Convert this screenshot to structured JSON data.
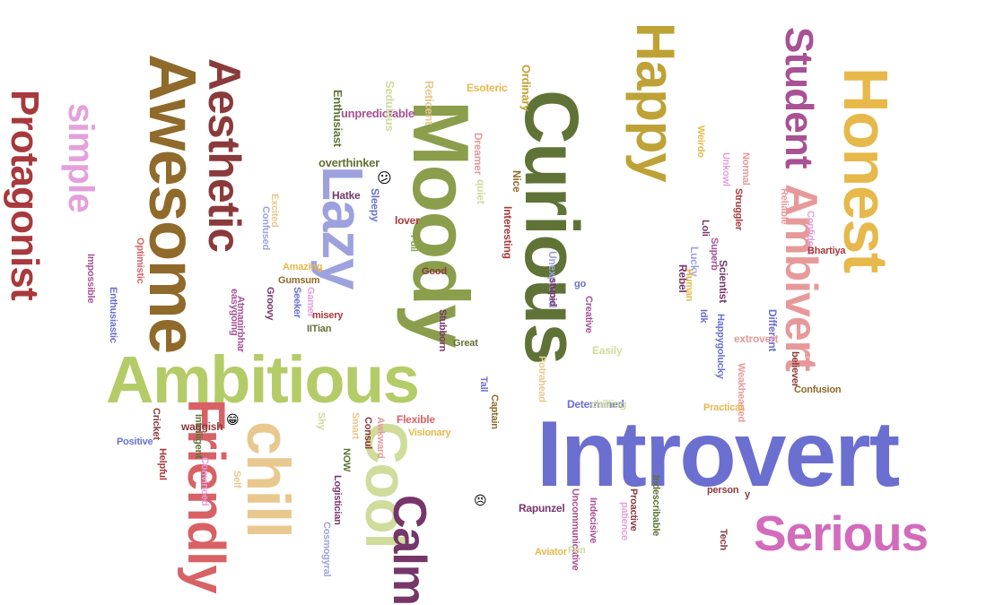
{
  "cloud": {
    "words": [
      {
        "text": "Introvert",
        "color": "#6b6fd0",
        "orientation": "horizontal"
      },
      {
        "text": "Ambitious",
        "color": "#b4cc67",
        "orientation": "horizontal"
      },
      {
        "text": "Moody",
        "color": "#8a9e4c",
        "orientation": "vertical"
      },
      {
        "text": "Curious",
        "color": "#5f7336",
        "orientation": "vertical"
      },
      {
        "text": "Awesome",
        "color": "#8f6a2b",
        "orientation": "vertical"
      },
      {
        "text": "Honest",
        "color": "#e7b84a",
        "orientation": "vertical"
      },
      {
        "text": "Happy",
        "color": "#bea236",
        "orientation": "vertical"
      },
      {
        "text": "Lazy",
        "color": "#9da2de",
        "orientation": "vertical"
      },
      {
        "text": "Cool",
        "color": "#cfdc9b",
        "orientation": "vertical"
      },
      {
        "text": "chill",
        "color": "#e8c88e",
        "orientation": "vertical"
      },
      {
        "text": "Friendly",
        "color": "#d86165",
        "orientation": "vertical"
      },
      {
        "text": "Serious",
        "color": "#d36bbd",
        "orientation": "horizontal"
      },
      {
        "text": "Calm",
        "color": "#763669",
        "orientation": "vertical"
      },
      {
        "text": "Ambivert",
        "color": "#e7999a",
        "orientation": "vertical"
      },
      {
        "text": "Student",
        "color": "#a85194",
        "orientation": "vertical"
      },
      {
        "text": "Aesthetic",
        "color": "#8b3a3b",
        "orientation": "vertical"
      },
      {
        "text": "Protagonist",
        "color": "#a8393c",
        "orientation": "vertical"
      },
      {
        "text": "simple",
        "color": "#e4a0dc",
        "orientation": "vertical"
      },
      {
        "text": "overthinker",
        "color": "#5f7336",
        "orientation": "horizontal"
      },
      {
        "text": "unpredictable",
        "color": "#a85194",
        "orientation": "horizontal"
      },
      {
        "text": "Enthusiast",
        "color": "#5f7336",
        "orientation": "vertical"
      },
      {
        "text": "Sedulous",
        "color": "#cfdc9b",
        "orientation": "vertical"
      },
      {
        "text": "Reticent",
        "color": "#e8c88e",
        "orientation": "vertical"
      },
      {
        "text": "Esoteric",
        "color": "#e7b84a",
        "orientation": "horizontal"
      },
      {
        "text": "Ordinary",
        "color": "#bea236",
        "orientation": "vertical"
      },
      {
        "text": "Dreamer",
        "color": "#e7999a",
        "orientation": "vertical"
      },
      {
        "text": "Nice",
        "color": "#8f6a2b",
        "orientation": "vertical"
      },
      {
        "text": "quiet",
        "color": "#cfdc9b",
        "orientation": "vertical"
      },
      {
        "text": "Hatke",
        "color": "#763669",
        "orientation": "horizontal"
      },
      {
        "text": "Sleepy",
        "color": "#6b6fd0",
        "orientation": "vertical"
      },
      {
        "text": "Excited",
        "color": "#e8c88e",
        "orientation": "vertical"
      },
      {
        "text": "lover",
        "color": "#a8393c",
        "orientation": "horizontal"
      },
      {
        "text": "Confused",
        "color": "#9da2de",
        "orientation": "vertical"
      },
      {
        "text": "Full",
        "color": "#8a9e4c",
        "orientation": "vertical"
      },
      {
        "text": "Interesting",
        "color": "#a8393c",
        "orientation": "vertical"
      },
      {
        "text": "Unexplored",
        "color": "#9da2de",
        "orientation": "vertical"
      },
      {
        "text": "Optimistic",
        "color": "#d86165",
        "orientation": "vertical"
      },
      {
        "text": "Impossible",
        "color": "#a85194",
        "orientation": "vertical"
      },
      {
        "text": "Amazing",
        "color": "#e7b84a",
        "orientation": "horizontal"
      },
      {
        "text": "Good",
        "color": "#8b3a3b",
        "orientation": "horizontal"
      },
      {
        "text": "easygoing",
        "color": "#a85194",
        "orientation": "vertical"
      },
      {
        "text": "Gumsum",
        "color": "#8f6a2b",
        "orientation": "horizontal"
      },
      {
        "text": "Gamer",
        "color": "#e4a0dc",
        "orientation": "vertical"
      },
      {
        "text": "Atmanirbhar",
        "color": "#a85194",
        "orientation": "vertical"
      },
      {
        "text": "Groovy",
        "color": "#763669",
        "orientation": "vertical"
      },
      {
        "text": "Seeker",
        "color": "#6b6fd0",
        "orientation": "vertical"
      },
      {
        "text": "misery",
        "color": "#a8393c",
        "orientation": "horizontal"
      },
      {
        "text": "stupid",
        "color": "#763669",
        "orientation": "vertical"
      },
      {
        "text": "go",
        "color": "#6b6fd0",
        "orientation": "horizontal"
      },
      {
        "text": "Enthusiastic",
        "color": "#6b6fd0",
        "orientation": "vertical"
      },
      {
        "text": "IITian",
        "color": "#5f7336",
        "orientation": "horizontal"
      },
      {
        "text": "Stubborn",
        "color": "#763669",
        "orientation": "vertical"
      },
      {
        "text": "Creative",
        "color": "#a85194",
        "orientation": "vertical"
      },
      {
        "text": "Easily",
        "color": "#cfdc9b",
        "orientation": "horizontal"
      },
      {
        "text": "Great",
        "color": "#5f7336",
        "orientation": "horizontal"
      },
      {
        "text": "Tall",
        "color": "#6b6fd0",
        "orientation": "vertical"
      },
      {
        "text": "Determined",
        "color": "#6b6fd0",
        "orientation": "horizontal"
      },
      {
        "text": "Potrahead",
        "color": "#e8c88e",
        "orientation": "vertical"
      },
      {
        "text": "chilling",
        "color": "#cfdc9b",
        "orientation": "horizontal"
      },
      {
        "text": "Captain",
        "color": "#8f6a2b",
        "orientation": "vertical"
      },
      {
        "text": "Rebel",
        "color": "#763669",
        "orientation": "vertical"
      },
      {
        "text": "Lucky",
        "color": "#9da2de",
        "orientation": "vertical"
      },
      {
        "text": "Loli",
        "color": "#763669",
        "orientation": "vertical"
      },
      {
        "text": "Superb",
        "color": "#a85194",
        "orientation": "vertical"
      },
      {
        "text": "Human",
        "color": "#e7b84a",
        "orientation": "vertical"
      },
      {
        "text": "Scientist",
        "color": "#763669",
        "orientation": "vertical"
      },
      {
        "text": "Idk",
        "color": "#6b6fd0",
        "orientation": "vertical"
      },
      {
        "text": "Happygolucky",
        "color": "#6b6fd0",
        "orientation": "vertical"
      },
      {
        "text": "Different",
        "color": "#6b6fd0",
        "orientation": "vertical"
      },
      {
        "text": "Weirdo",
        "color": "#e7b84a",
        "orientation": "vertical"
      },
      {
        "text": "Unkowl",
        "color": "#e4a0dc",
        "orientation": "vertical"
      },
      {
        "text": "Normal",
        "color": "#e7999a",
        "orientation": "vertical"
      },
      {
        "text": "Struggler",
        "color": "#a8393c",
        "orientation": "vertical"
      },
      {
        "text": "Reliable",
        "color": "#e7999a",
        "orientation": "vertical"
      },
      {
        "text": "Confident",
        "color": "#e4a0dc",
        "orientation": "vertical"
      },
      {
        "text": "Bhartiya",
        "color": "#a8393c",
        "orientation": "horizontal"
      },
      {
        "text": "extrovert",
        "color": "#e7999a",
        "orientation": "horizontal"
      },
      {
        "text": "believer",
        "color": "#8b3a3b",
        "orientation": "vertical"
      },
      {
        "text": "Weakhearted",
        "color": "#e7999a",
        "orientation": "vertical"
      },
      {
        "text": "Confusion",
        "color": "#8f6a2b",
        "orientation": "horizontal"
      },
      {
        "text": "Practical",
        "color": "#e7b84a",
        "orientation": "horizontal"
      },
      {
        "text": "Cricket",
        "color": "#8b3a3b",
        "orientation": "vertical"
      },
      {
        "text": "Intelligent",
        "color": "#5f7336",
        "orientation": "vertical"
      },
      {
        "text": "waggish",
        "color": "#8b3a3b",
        "orientation": "horizontal"
      },
      {
        "text": "Positive",
        "color": "#6b6fd0",
        "orientation": "horizontal"
      },
      {
        "text": "Helpful",
        "color": "#a8393c",
        "orientation": "vertical"
      },
      {
        "text": "Convinced",
        "color": "#e4a0dc",
        "orientation": "vertical"
      },
      {
        "text": "Self",
        "color": "#e8c88e",
        "orientation": "vertical"
      },
      {
        "text": "Shy",
        "color": "#cfdc9b",
        "orientation": "vertical"
      },
      {
        "text": "Smart",
        "color": "#e8c88e",
        "orientation": "vertical"
      },
      {
        "text": "NOW",
        "color": "#5f7336",
        "orientation": "vertical"
      },
      {
        "text": "Consul",
        "color": "#8b3a3b",
        "orientation": "vertical"
      },
      {
        "text": "Awkward",
        "color": "#e7999a",
        "orientation": "vertical"
      },
      {
        "text": "Flexible",
        "color": "#d86165",
        "orientation": "horizontal"
      },
      {
        "text": "Visionary",
        "color": "#e7b84a",
        "orientation": "horizontal"
      },
      {
        "text": "Logistician",
        "color": "#763669",
        "orientation": "vertical"
      },
      {
        "text": "Cosmogyral",
        "color": "#9da2de",
        "orientation": "vertical"
      },
      {
        "text": "Rapunzel",
        "color": "#763669",
        "orientation": "horizontal"
      },
      {
        "text": "Uncommunicative",
        "color": "#a85194",
        "orientation": "vertical"
      },
      {
        "text": "Aviator",
        "color": "#e7b84a",
        "orientation": "horizontal"
      },
      {
        "text": "Fun",
        "color": "#cfdc9b",
        "orientation": "horizontal"
      },
      {
        "text": "Indecisive",
        "color": "#a85194",
        "orientation": "vertical"
      },
      {
        "text": "patience",
        "color": "#e4a0dc",
        "orientation": "vertical"
      },
      {
        "text": "Proactive",
        "color": "#8b3a3b",
        "orientation": "vertical"
      },
      {
        "text": "Indescribable",
        "color": "#5f7336",
        "orientation": "vertical"
      },
      {
        "text": "person",
        "color": "#8b3a3b",
        "orientation": "horizontal"
      },
      {
        "text": "Tech",
        "color": "#8b3a3b",
        "orientation": "vertical"
      },
      {
        "text": "y",
        "color": "#8b3a3b",
        "orientation": "horizontal"
      }
    ],
    "emojis": [
      {
        "icon": "confused-face-icon",
        "glyph": "😕"
      },
      {
        "icon": "grinning-face-icon",
        "glyph": "😁"
      },
      {
        "icon": "persevering-face-icon",
        "glyph": "😣"
      }
    ]
  }
}
